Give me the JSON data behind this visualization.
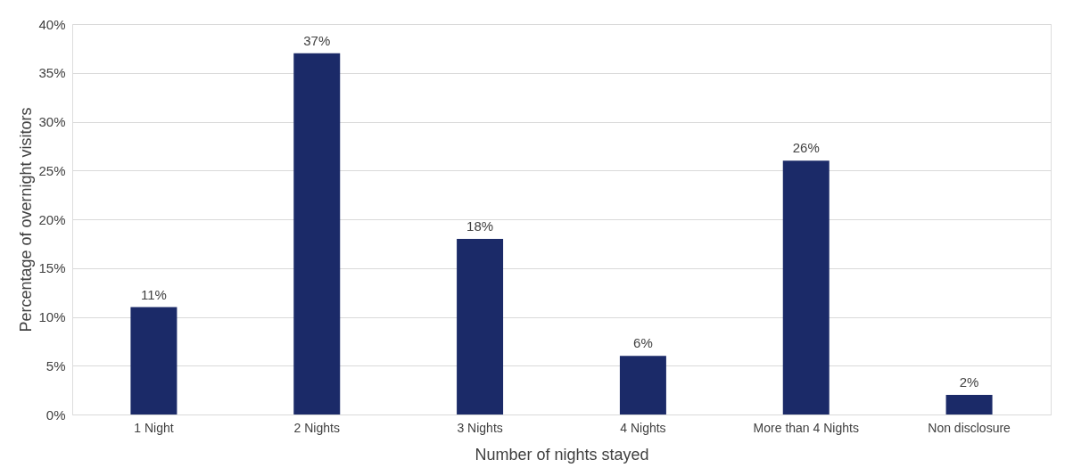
{
  "chart_data": {
    "type": "bar",
    "xlabel": "Number of nights stayed",
    "ylabel": "Percentage of overnight visitors",
    "categories": [
      "1 Night",
      "2 Nights",
      "3 Nights",
      "4 Nights",
      "More than 4 Nights",
      "Non disclosure"
    ],
    "values": [
      11,
      37,
      18,
      6,
      26,
      2
    ],
    "value_labels": [
      "11%",
      "37%",
      "18%",
      "6%",
      "26%",
      "2%"
    ],
    "color": "#1b2a68",
    "ylim": [
      0,
      40
    ],
    "yticks": [
      {
        "value": 0,
        "label": "0%"
      },
      {
        "value": 5,
        "label": "5%"
      },
      {
        "value": 10,
        "label": "10%"
      },
      {
        "value": 15,
        "label": "15%"
      },
      {
        "value": 20,
        "label": "20%"
      },
      {
        "value": 25,
        "label": "25%"
      },
      {
        "value": 30,
        "label": "30%"
      },
      {
        "value": 35,
        "label": "35%"
      },
      {
        "value": 40,
        "label": "40%"
      }
    ],
    "grid": "y"
  }
}
